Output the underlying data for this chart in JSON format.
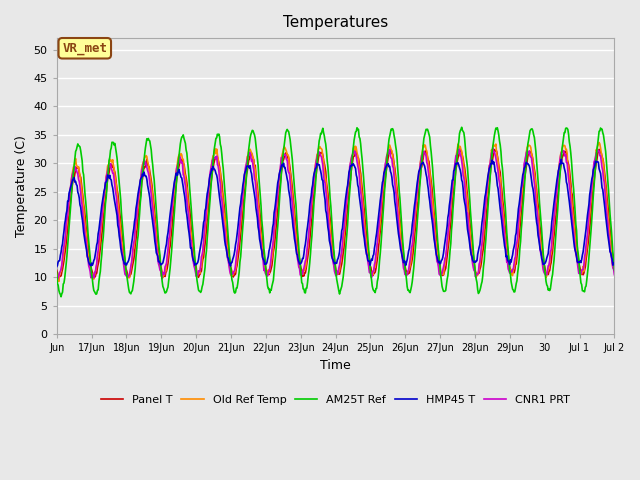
{
  "title": "Temperatures",
  "xlabel": "Time",
  "ylabel": "Temperature (C)",
  "ylim": [
    0,
    52
  ],
  "yticks": [
    0,
    5,
    10,
    15,
    20,
    25,
    30,
    35,
    40,
    45,
    50
  ],
  "annotation_text": "VR_met",
  "annotation_bg": "#FFFF99",
  "annotation_border": "#8B4513",
  "plot_bg": "#E8E8E8",
  "grid_color": "white",
  "series": {
    "Panel T": {
      "color": "#CC0000",
      "lw": 1.2,
      "zorder": 3
    },
    "Old Ref Temp": {
      "color": "#FF8C00",
      "lw": 1.2,
      "zorder": 3
    },
    "AM25T Ref": {
      "color": "#00CC00",
      "lw": 1.2,
      "zorder": 4
    },
    "HMP45 T": {
      "color": "#0000CC",
      "lw": 1.2,
      "zorder": 5
    },
    "CNR1 PRT": {
      "color": "#CC00CC",
      "lw": 1.2,
      "zorder": 3
    }
  },
  "xticklabels": [
    "Jun",
    "17Jun",
    "18Jun",
    "19Jun",
    "20Jun",
    "21Jun",
    "22Jun",
    "23Jun",
    "24Jun",
    "25Jun",
    "26Jun",
    "27Jun",
    "28Jun",
    "29Jun",
    "30",
    "Jul 1",
    "Jul 2"
  ],
  "days": 16,
  "samples_per_day": 48
}
